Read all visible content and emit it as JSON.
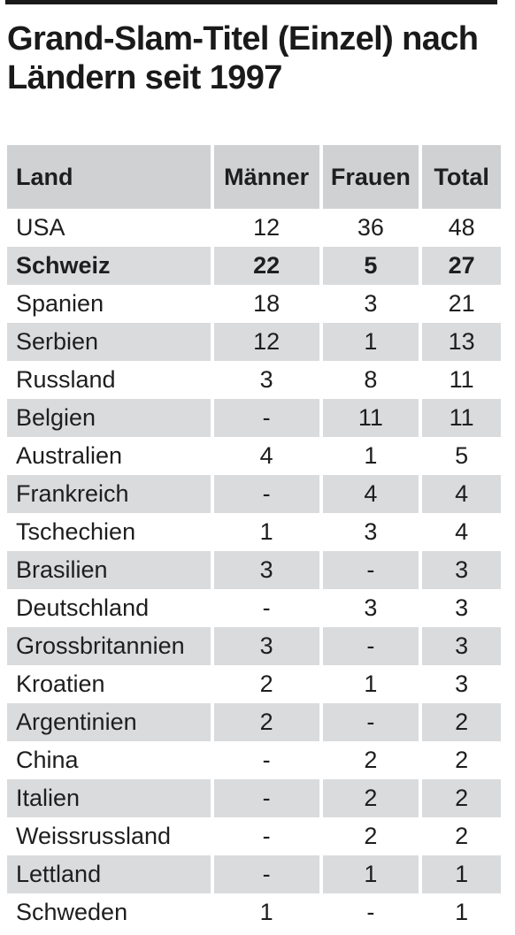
{
  "title": "Grand-Slam-Titel (Einzel) nach Ländern seit 1997",
  "colors": {
    "header_bg": "#cfd1d3",
    "stripe_bg": "#d9dbdd",
    "text": "#1e1e1e",
    "rule": "#1a1a1a"
  },
  "chart_data": {
    "type": "table",
    "title": "Grand-Slam-Titel (Einzel) nach Ländern seit 1997",
    "columns": [
      "Land",
      "Männer",
      "Frauen",
      "Total"
    ],
    "rows": [
      {
        "land": "USA",
        "maenner": "12",
        "frauen": "36",
        "total": "48"
      },
      {
        "land": "Schweiz",
        "maenner": "22",
        "frauen": "5",
        "total": "27",
        "bold": true
      },
      {
        "land": "Spanien",
        "maenner": "18",
        "frauen": "3",
        "total": "21"
      },
      {
        "land": "Serbien",
        "maenner": "12",
        "frauen": "1",
        "total": "13"
      },
      {
        "land": "Russland",
        "maenner": "3",
        "frauen": "8",
        "total": "11"
      },
      {
        "land": "Belgien",
        "maenner": "-",
        "frauen": "11",
        "total": "11"
      },
      {
        "land": "Australien",
        "maenner": "4",
        "frauen": "1",
        "total": "5"
      },
      {
        "land": "Frankreich",
        "maenner": "-",
        "frauen": "4",
        "total": "4"
      },
      {
        "land": "Tschechien",
        "maenner": "1",
        "frauen": "3",
        "total": "4"
      },
      {
        "land": "Brasilien",
        "maenner": "3",
        "frauen": "-",
        "total": "3"
      },
      {
        "land": "Deutschland",
        "maenner": "-",
        "frauen": "3",
        "total": "3"
      },
      {
        "land": "Grossbritannien",
        "maenner": "3",
        "frauen": "-",
        "total": "3"
      },
      {
        "land": "Kroatien",
        "maenner": "2",
        "frauen": "1",
        "total": "3"
      },
      {
        "land": "Argentinien",
        "maenner": "2",
        "frauen": "-",
        "total": "2"
      },
      {
        "land": "China",
        "maenner": "-",
        "frauen": "2",
        "total": "2"
      },
      {
        "land": "Italien",
        "maenner": "-",
        "frauen": "2",
        "total": "2"
      },
      {
        "land": "Weissrussland",
        "maenner": "-",
        "frauen": "2",
        "total": "2"
      },
      {
        "land": "Lettland",
        "maenner": "-",
        "frauen": "1",
        "total": "1"
      },
      {
        "land": "Schweden",
        "maenner": "1",
        "frauen": "-",
        "total": "1"
      }
    ]
  }
}
